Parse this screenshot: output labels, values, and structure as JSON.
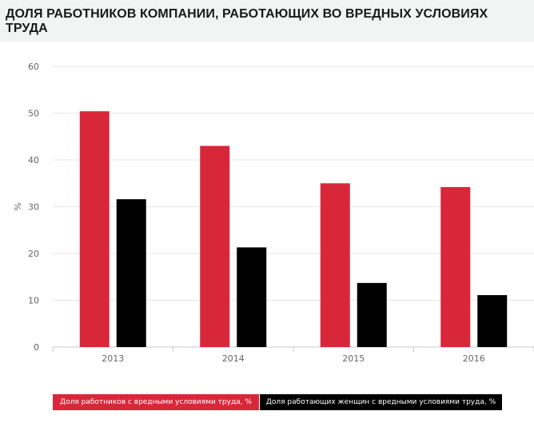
{
  "chart_data": {
    "type": "bar",
    "title": "ДОЛЯ РАБОТНИКОВ КОМПАНИИ, РАБОТАЮЩИХ ВО ВРЕДНЫХ УСЛОВИЯХ ТРУДА",
    "ylabel": "%",
    "xlabel": "",
    "categories": [
      "2013",
      "2014",
      "2015",
      "2016"
    ],
    "ylim": [
      0,
      60
    ],
    "yticks": [
      "0",
      "10",
      "20",
      "30",
      "40",
      "50",
      "60"
    ],
    "grid": true,
    "legend_position": "bottom",
    "series": [
      {
        "name": "Доля работников с вредными условиями труда, %",
        "values": [
          50.4,
          43.0,
          35.0,
          34.2
        ],
        "color": "#d9273a"
      },
      {
        "name": "Доля работающих женщин с вредными условиями труда, %",
        "values": [
          31.6,
          21.3,
          13.7,
          11.1
        ],
        "color": "#000000"
      }
    ]
  }
}
